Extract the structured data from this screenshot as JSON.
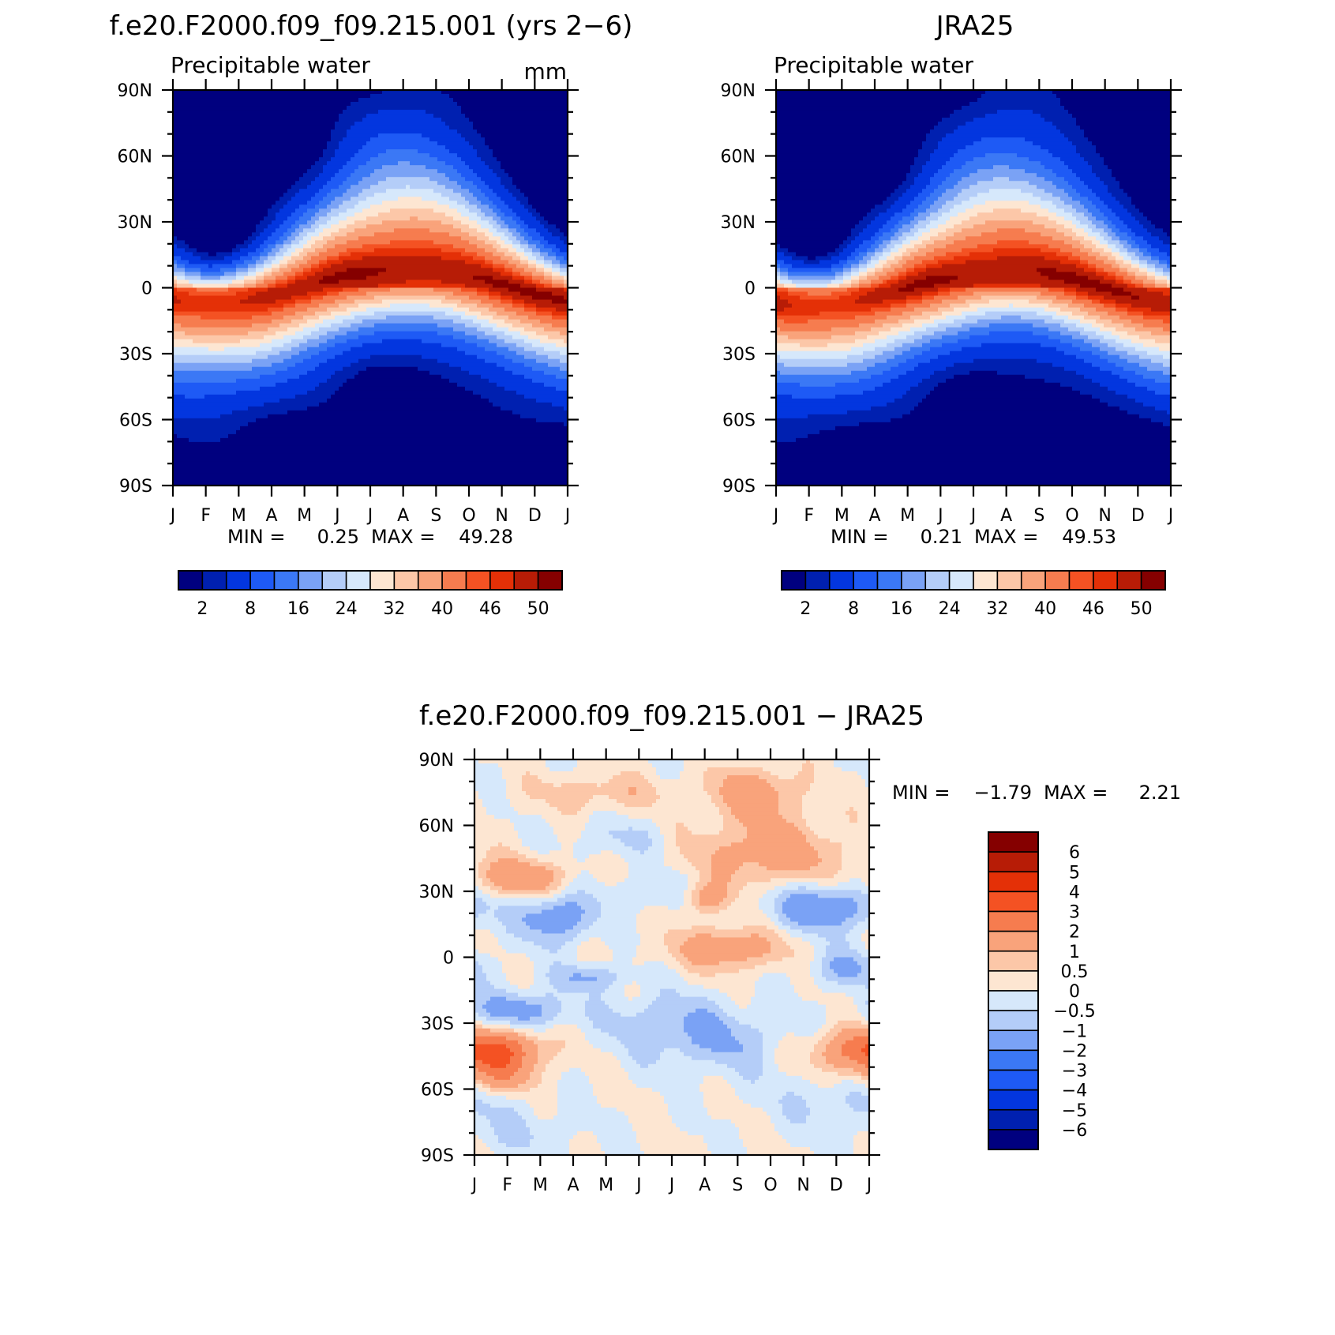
{
  "months": [
    "J",
    "F",
    "M",
    "A",
    "M",
    "J",
    "J",
    "A",
    "S",
    "O",
    "N",
    "D",
    "J"
  ],
  "lat_ticks": [
    "90N",
    "60N",
    "30N",
    "0",
    "30S",
    "60S",
    "90S"
  ],
  "chart_data": [
    {
      "type": "heatmap",
      "title": "f.e20.F2000.f09_f09.215.001 (yrs 2−6)",
      "subtitle": "Precipitable water",
      "units": "mm",
      "min_label": "MIN =",
      "min_value": "0.25",
      "max_label": "MAX =",
      "max_value": "49.28",
      "x_tick_labels": [
        "J",
        "F",
        "M",
        "A",
        "M",
        "J",
        "J",
        "A",
        "S",
        "O",
        "N",
        "D",
        "J"
      ],
      "y_tick_labels": [
        "90N",
        "60N",
        "30N",
        "0",
        "30S",
        "60S",
        "90S"
      ],
      "ylim": [
        -90,
        90
      ],
      "levels": [
        "2",
        "4",
        "8",
        "12",
        "16",
        "20",
        "24",
        "28",
        "32",
        "36",
        "40",
        "44",
        "46",
        "48",
        "50"
      ],
      "colorbar_labels": [
        "2",
        "8",
        "16",
        "24",
        "32",
        "40",
        "46",
        "50"
      ],
      "peak_month": 7.1,
      "peak_lat": 7
    },
    {
      "type": "heatmap",
      "title": "JRA25",
      "subtitle": "Precipitable water",
      "min_label": "MIN =",
      "min_value": "0.21",
      "max_label": "MAX =",
      "max_value": "49.53",
      "x_tick_labels": [
        "J",
        "F",
        "M",
        "A",
        "M",
        "J",
        "J",
        "A",
        "S",
        "O",
        "N",
        "D",
        "J"
      ],
      "y_tick_labels": [
        "90N",
        "60N",
        "30N",
        "0",
        "30S",
        "60S",
        "90S"
      ],
      "ylim": [
        -90,
        90
      ],
      "levels": [
        "2",
        "4",
        "8",
        "12",
        "16",
        "20",
        "24",
        "28",
        "32",
        "36",
        "40",
        "44",
        "46",
        "48",
        "50"
      ],
      "colorbar_labels": [
        "2",
        "8",
        "16",
        "24",
        "32",
        "40",
        "46",
        "50"
      ],
      "peak_month": 7.0,
      "peak_lat": 6
    },
    {
      "type": "heatmap",
      "title": "f.e20.F2000.f09_f09.215.001 − JRA25",
      "min_label": "MIN =",
      "min_value": "−1.79",
      "max_label": "MAX =",
      "max_value": "2.21",
      "x_tick_labels": [
        "J",
        "F",
        "M",
        "A",
        "M",
        "J",
        "J",
        "A",
        "S",
        "O",
        "N",
        "D",
        "J"
      ],
      "y_tick_labels": [
        "90N",
        "60N",
        "30N",
        "0",
        "30S",
        "60S",
        "90S"
      ],
      "ylim": [
        -90,
        90
      ],
      "levels": [
        "−6",
        "−5",
        "−4",
        "−3",
        "−2",
        "−1",
        "−0.5",
        "0",
        "0.5",
        "1",
        "2",
        "3",
        "4",
        "5",
        "6"
      ],
      "colorbar_labels": [
        "6",
        "5",
        "4",
        "3",
        "2",
        "1",
        "0.5",
        "0",
        "−0.5",
        "−1",
        "−2",
        "−3",
        "−4",
        "−5",
        "−6"
      ]
    }
  ],
  "colors": {
    "mean_palette": [
      "#00007f",
      "#0020b0",
      "#0336df",
      "#1e5af5",
      "#3b78f5",
      "#7aa2f5",
      "#b4cdf8",
      "#d6e8fb",
      "#fde6d2",
      "#fcc7a8",
      "#f9a37b",
      "#f67c4f",
      "#f45223",
      "#e43007",
      "#b71c06",
      "#850000"
    ],
    "diff_palette": [
      "#850000",
      "#b71c06",
      "#e43007",
      "#f45223",
      "#f67c4f",
      "#f9a37b",
      "#fcc7a8",
      "#fde6d2",
      "#d6e8fb",
      "#b4cdf8",
      "#7aa2f5",
      "#3b78f5",
      "#1e5af5",
      "#0336df",
      "#0020b0",
      "#00007f"
    ]
  }
}
